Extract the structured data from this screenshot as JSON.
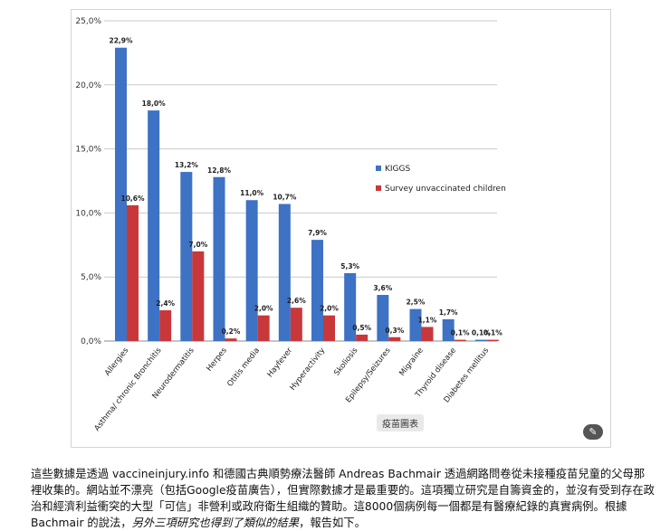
{
  "chart_data": {
    "type": "bar",
    "categories": [
      "Allergies",
      "Asthma/ chronic Bronchitis",
      "Neurodermatitis",
      "Herpes",
      "Otitis media",
      "Hayfever",
      "Hyperactivity",
      "Skoliosis",
      "Epilepsy/Seizures",
      "Migraine",
      "Thyroid disease",
      "Diabetes mellitus"
    ],
    "series": [
      {
        "name": "KIGGS",
        "color": "#3d72c4",
        "values": [
          22.9,
          18.0,
          13.2,
          12.8,
          11.0,
          10.7,
          7.9,
          5.3,
          3.6,
          2.5,
          1.7,
          0.1
        ],
        "labels": [
          "22,9%",
          "18,0%",
          "13,2%",
          "12,8%",
          "11,0%",
          "10,7%",
          "7,9%",
          "5,3%",
          "3,6%",
          "2,5%",
          "1,7%",
          "0,1%"
        ]
      },
      {
        "name": "Survey unvaccinated children",
        "color": "#c8383a",
        "values": [
          10.6,
          2.4,
          7.0,
          0.2,
          2.0,
          2.6,
          2.0,
          0.5,
          0.3,
          1.1,
          0.1,
          0.1
        ],
        "labels": [
          "10,6%",
          "2,4%",
          "7,0%",
          "0,2%",
          "2,0%",
          "2,6%",
          "2,0%",
          "0,5%",
          "0,3%",
          "1,1%",
          "0,1%",
          "0,1%"
        ]
      }
    ],
    "yticks": [
      0,
      5,
      10,
      15,
      20,
      25
    ],
    "ytick_labels": [
      "0,0%",
      "5,0%",
      "10,0%",
      "15,0%",
      "20,0%",
      "25,0%"
    ],
    "ylim": [
      0,
      25
    ],
    "grid": true,
    "legend": "right",
    "title": "",
    "xlabel": "",
    "ylabel": ""
  },
  "caption_chip": "疫苗圖表",
  "magic_button_icon": "magic-wand-icon",
  "paragraph": {
    "text_main": "這些數據是透過 vaccineinjury.info 和德國古典順勢療法醫師 Andreas Bachmair 透過網路問卷從未接種疫苗兒童的父母那裡收集的。網站並不漂亮（包括Google疫苗廣告），但實際數據才是最重要的。這項獨立研究是自籌資金的，並沒有受到存在政治和經濟利益衝突的大型「可信」非營利或政府衛生組織的贊助。這8000個病例每一個都是有醫療紀錄的真實病例。根據 Bachmair 的說法，",
    "text_italic": "另外三項研究也得到了類似的結果",
    "text_end": "，報告如下。"
  }
}
